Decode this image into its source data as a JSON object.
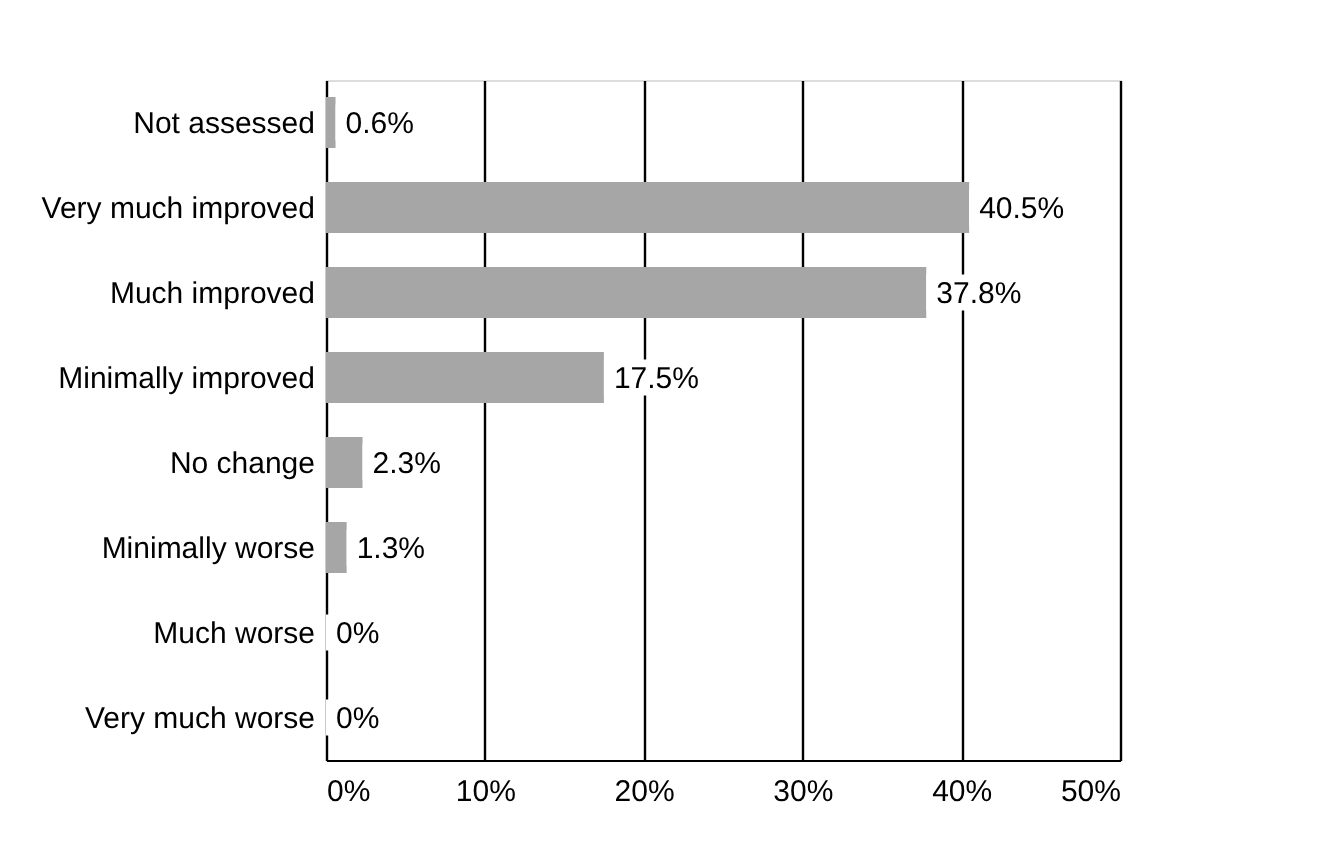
{
  "chart_data": {
    "type": "bar",
    "orientation": "horizontal",
    "categories": [
      "Not assessed",
      "Very much improved",
      "Much improved",
      "Minimally improved",
      "No change",
      "Minimally worse",
      "Much worse",
      "Very much worse"
    ],
    "values": [
      0.6,
      40.5,
      37.8,
      17.5,
      2.3,
      1.3,
      0,
      0
    ],
    "value_labels": [
      "0.6%",
      "40.5%",
      "37.8%",
      "17.5%",
      "2.3%",
      "1.3%",
      "0%",
      "0%"
    ],
    "color": "#a6a6a6",
    "xlim": [
      0,
      50
    ],
    "xticks": [
      {
        "value": 0,
        "label": "0%"
      },
      {
        "value": 10,
        "label": "10%"
      },
      {
        "value": 20,
        "label": "20%"
      },
      {
        "value": 30,
        "label": "30%"
      },
      {
        "value": 40,
        "label": "40%"
      },
      {
        "value": 50,
        "label": "50%"
      }
    ],
    "grid": "x"
  }
}
